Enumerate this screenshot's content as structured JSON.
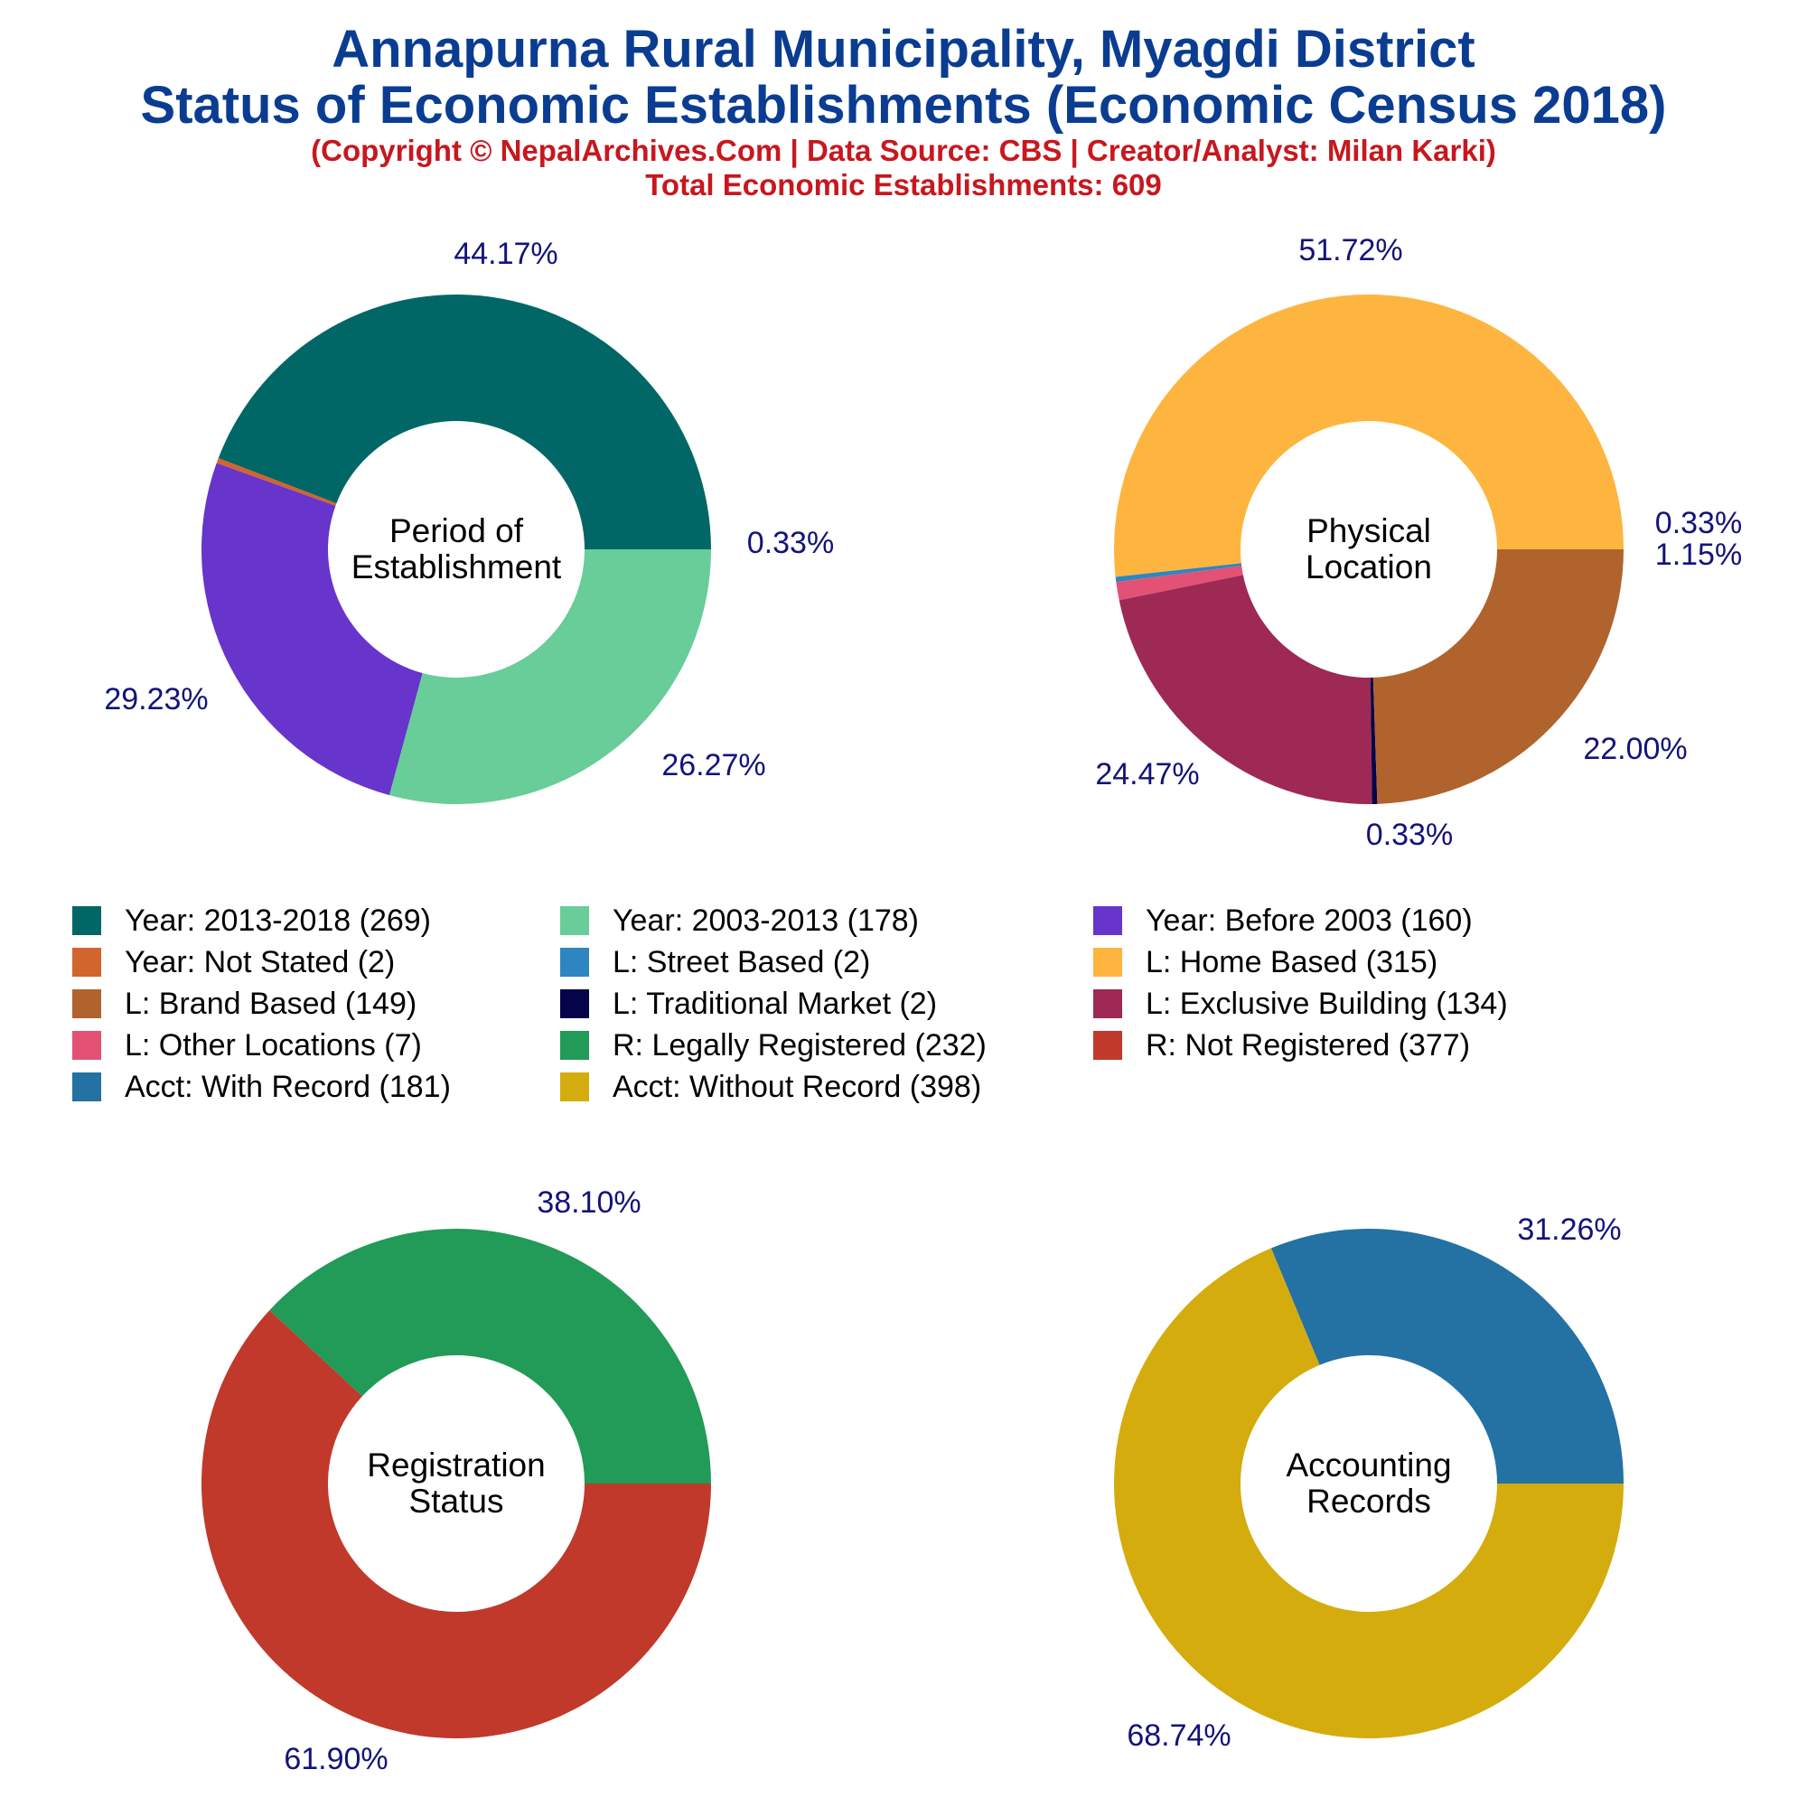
{
  "header": {
    "title_line1": "Annapurna Rural Municipality, Myagdi District",
    "title_line2": "Status of Economic Establishments (Economic Census 2018)",
    "credit": "(Copyright © NepalArchives.Com | Data Source: CBS | Creator/Analyst: Milan Karki)",
    "total": "Total Economic Establishments: 609"
  },
  "colors": {
    "title": "#0a3d91",
    "subtitle": "#c8171e",
    "percent_labels": "#13137a"
  },
  "chart_data": [
    {
      "type": "pie",
      "center_label": [
        "Period of",
        "Establishment"
      ],
      "slices": [
        {
          "legend": "Year: 2013-2018 (269)",
          "value": 269,
          "percent": "44.17%",
          "color": "#006766"
        },
        {
          "legend": "Year: Not Stated (2)",
          "value": 2,
          "percent": "0.33%",
          "color": "#d2642d"
        },
        {
          "legend": "Year: Before 2003 (160)",
          "value": 160,
          "percent": "26.27%",
          "color": "#6734cc"
        },
        {
          "legend": "Year: 2003-2013 (178)",
          "value": 178,
          "percent": "29.23%",
          "color": "#68cd98"
        }
      ]
    },
    {
      "type": "pie",
      "center_label": [
        "Physical",
        "Location"
      ],
      "slices": [
        {
          "legend": "L: Home Based (315)",
          "value": 315,
          "percent": "51.72%",
          "color": "#fdb53f"
        },
        {
          "legend": "L: Street Based (2)",
          "value": 2,
          "percent": "0.33%",
          "color": "#2e86c1"
        },
        {
          "legend": "L: Other Locations (7)",
          "value": 7,
          "percent": "1.15%",
          "color": "#e35274"
        },
        {
          "legend": "L: Exclusive Building (134)",
          "value": 134,
          "percent": "22.00%",
          "color": "#9e2954"
        },
        {
          "legend": "L: Traditional Market (2)",
          "value": 2,
          "percent": "0.33%",
          "color": "#050349"
        },
        {
          "legend": "L: Brand Based (149)",
          "value": 149,
          "percent": "24.47%",
          "color": "#b1632e"
        }
      ]
    },
    {
      "type": "pie",
      "center_label": [
        "Registration",
        "Status"
      ],
      "slices": [
        {
          "legend": "R: Legally Registered (232)",
          "value": 232,
          "percent": "38.10%",
          "color": "#229a58"
        },
        {
          "legend": "R: Not Registered (377)",
          "value": 377,
          "percent": "61.90%",
          "color": "#c0392b"
        }
      ]
    },
    {
      "type": "pie",
      "center_label": [
        "Accounting",
        "Records"
      ],
      "slices": [
        {
          "legend": "Acct: With Record (181)",
          "value": 181,
          "percent": "31.26%",
          "color": "#2471a3"
        },
        {
          "legend": "Acct: Without Record (398)",
          "value": 398,
          "percent": "68.74%",
          "color": "#d4ac0d"
        }
      ]
    }
  ],
  "legend": [
    {
      "label": "Year: 2013-2018 (269)",
      "color": "#006766"
    },
    {
      "label": "Year: 2003-2013 (178)",
      "color": "#68cd98"
    },
    {
      "label": "Year: Before 2003 (160)",
      "color": "#6734cc"
    },
    {
      "label": "Year: Not Stated (2)",
      "color": "#d2642d"
    },
    {
      "label": "L: Street Based (2)",
      "color": "#2e86c1"
    },
    {
      "label": "L: Home Based (315)",
      "color": "#fdb53f"
    },
    {
      "label": "L: Brand Based (149)",
      "color": "#b1632e"
    },
    {
      "label": "L: Traditional Market (2)",
      "color": "#050349"
    },
    {
      "label": "L: Exclusive Building (134)",
      "color": "#9e2954"
    },
    {
      "label": "L: Other Locations (7)",
      "color": "#e35274"
    },
    {
      "label": "R: Legally Registered (232)",
      "color": "#229a58"
    },
    {
      "label": "R: Not Registered (377)",
      "color": "#c0392b"
    },
    {
      "label": "Acct: With Record (181)",
      "color": "#2471a3"
    },
    {
      "label": "Acct: Without Record (398)",
      "color": "#d4ac0d"
    }
  ]
}
